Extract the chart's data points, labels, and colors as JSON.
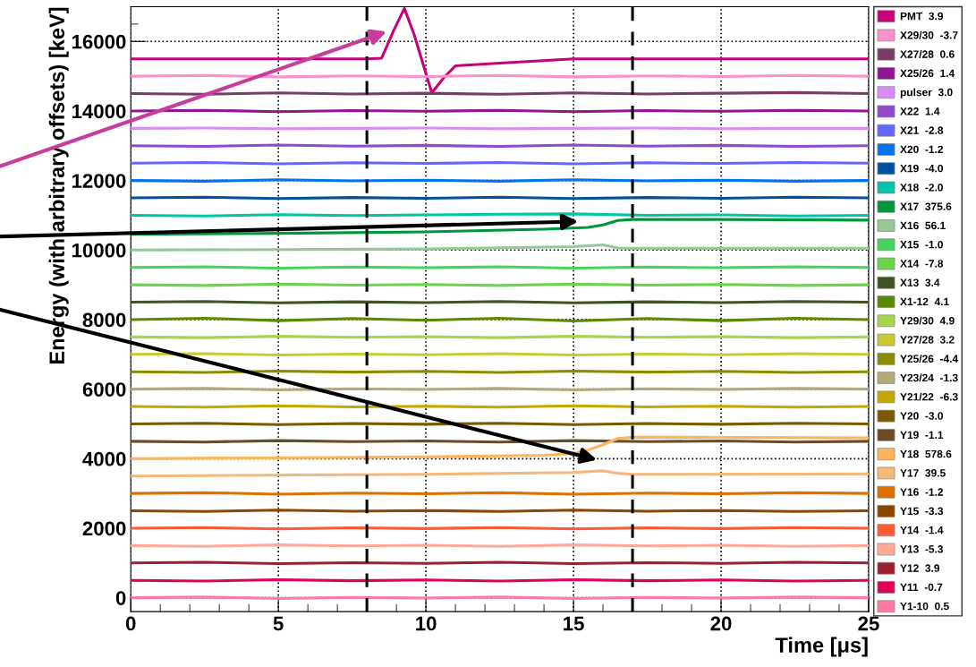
{
  "chart_data": {
    "type": "line",
    "xlabel": "Time [μs]",
    "ylabel": "Energy (with arbitrary offsets) [keV]",
    "x": [
      0,
      2.5,
      5,
      7.5,
      10,
      12.5,
      15,
      17.5,
      20,
      22.5,
      25
    ],
    "xlim": [
      0,
      25
    ],
    "xticks": [
      0,
      5,
      10,
      15,
      20,
      25
    ],
    "ylim": [
      -400,
      17000
    ],
    "yticks": [
      0,
      2000,
      4000,
      6000,
      8000,
      10000,
      12000,
      14000,
      16000
    ],
    "grid": true,
    "legend": "right",
    "line_style": "solid",
    "marker": "none",
    "ref_lines": [
      {
        "axis": "x",
        "value": 8,
        "color": "#000000",
        "line_style": "dashed"
      },
      {
        "axis": "x",
        "value": 17,
        "color": "#000000",
        "line_style": "dashed"
      }
    ],
    "series": [
      {
        "name": "PMT  3.9",
        "color": "#c8007a",
        "x": [
          0,
          8,
          8.5,
          8.9,
          9.27,
          9.6,
          10.2,
          10.6,
          11,
          12,
          15,
          25
        ],
        "values": [
          15500,
          15500,
          15520,
          16300,
          16950,
          16200,
          14520,
          14950,
          15300,
          15350,
          15500,
          15500
        ]
      },
      {
        "name": "X29/30  -3.7",
        "color": "#ff8fcc",
        "values": [
          15000,
          15020,
          14980,
          15010,
          14990,
          15020,
          14980,
          15010,
          14990,
          15020,
          15000
        ]
      },
      {
        "name": "X27/28  0.6",
        "color": "#7a3c66",
        "values": [
          14500,
          14480,
          14520,
          14490,
          14510,
          14480,
          14520,
          14490,
          14510,
          14530,
          14500
        ]
      },
      {
        "name": "X25/26  1.4",
        "color": "#8f1690",
        "values": [
          14000,
          14020,
          13980,
          14010,
          13990,
          14020,
          13980,
          14010,
          13990,
          14020,
          14000
        ]
      },
      {
        "name": "pulser  3.0",
        "color": "#d98cf5",
        "values": [
          13500,
          13510,
          13490,
          13500,
          13510,
          13490,
          13500,
          13510,
          13490,
          13500,
          13500
        ]
      },
      {
        "name": "X22  1.4",
        "color": "#9148cc",
        "values": [
          13000,
          12980,
          13020,
          12990,
          13010,
          12980,
          13020,
          12990,
          13010,
          12980,
          13000
        ]
      },
      {
        "name": "X21  -2.8",
        "color": "#6666ff",
        "values": [
          12500,
          12520,
          12480,
          12510,
          12490,
          12520,
          12480,
          12510,
          12490,
          12520,
          12500
        ]
      },
      {
        "name": "X20  -1.2",
        "color": "#0073f0",
        "values": [
          12000,
          11980,
          12020,
          11990,
          12010,
          11980,
          12020,
          11990,
          12010,
          11980,
          12000
        ]
      },
      {
        "name": "X19  -4.0",
        "color": "#0050a0",
        "values": [
          11500,
          11520,
          11480,
          11510,
          11490,
          11520,
          11480,
          11510,
          11490,
          11520,
          11500
        ]
      },
      {
        "name": "X18  -2.0",
        "color": "#00c4aa",
        "values": [
          11000,
          10980,
          11020,
          10990,
          11010,
          11030,
          11040,
          11000,
          11010,
          10980,
          11000
        ]
      },
      {
        "name": "X17  375.6",
        "color": "#00963c",
        "x": [
          0,
          5,
          10,
          14,
          15.5,
          16,
          16.5,
          17,
          20,
          25
        ],
        "values": [
          10450,
          10480,
          10520,
          10600,
          10650,
          10720,
          10850,
          10880,
          10880,
          10860
        ]
      },
      {
        "name": "X16  56.1",
        "color": "#96c896",
        "x": [
          0,
          10,
          15,
          16,
          16.5,
          17,
          25
        ],
        "values": [
          10000,
          10030,
          10100,
          10150,
          10060,
          10050,
          10050
        ]
      },
      {
        "name": "X15  -1.0",
        "color": "#44d45a",
        "values": [
          9500,
          9520,
          9480,
          9510,
          9490,
          9520,
          9480,
          9510,
          9490,
          9520,
          9500
        ]
      },
      {
        "name": "X14  -7.8",
        "color": "#6ad44a",
        "values": [
          9000,
          8980,
          9020,
          8990,
          9010,
          8980,
          9020,
          8990,
          9010,
          8980,
          9000
        ]
      },
      {
        "name": "X13  3.4",
        "color": "#3f5220",
        "values": [
          8500,
          8520,
          8480,
          8510,
          8490,
          8520,
          8480,
          8510,
          8490,
          8520,
          8500
        ]
      },
      {
        "name": "X1-12  4.1",
        "color": "#5a8a00",
        "values": [
          8000,
          8040,
          7970,
          8030,
          7980,
          8040,
          7960,
          8030,
          7970,
          8040,
          8000
        ]
      },
      {
        "name": "Y29/30  4.9",
        "color": "#a6d44a",
        "values": [
          7500,
          7480,
          7520,
          7490,
          7510,
          7480,
          7520,
          7490,
          7510,
          7480,
          7500
        ]
      },
      {
        "name": "Y27/28  3.2",
        "color": "#ccc832",
        "values": [
          7000,
          7020,
          6980,
          7010,
          6990,
          7020,
          6980,
          7010,
          6990,
          7020,
          7000
        ]
      },
      {
        "name": "Y25/26  -4.4",
        "color": "#8c8c00",
        "values": [
          6500,
          6480,
          6520,
          6490,
          6510,
          6480,
          6520,
          6490,
          6510,
          6480,
          6500
        ]
      },
      {
        "name": "Y23/24  -1.3",
        "color": "#b4aa78",
        "values": [
          6000,
          6020,
          5980,
          6010,
          5990,
          6020,
          5980,
          6010,
          5990,
          6020,
          6000
        ]
      },
      {
        "name": "Y21/22  -6.3",
        "color": "#c4aa00",
        "values": [
          5500,
          5480,
          5520,
          5490,
          5510,
          5480,
          5520,
          5490,
          5510,
          5480,
          5500
        ]
      },
      {
        "name": "Y20  -3.0",
        "color": "#7a5a00",
        "values": [
          5000,
          5020,
          4980,
          5010,
          4990,
          5020,
          4980,
          5010,
          4990,
          5020,
          5000
        ]
      },
      {
        "name": "Y19  -1.1",
        "color": "#6a4a28",
        "values": [
          4500,
          4480,
          4520,
          4490,
          4510,
          4480,
          4520,
          4490,
          4510,
          4480,
          4500
        ]
      },
      {
        "name": "Y18  578.6",
        "color": "#ffb45a",
        "x": [
          0,
          10,
          14,
          15,
          15.5,
          16,
          16.5,
          17,
          25
        ],
        "values": [
          4000,
          4050,
          4100,
          4150,
          4250,
          4400,
          4580,
          4620,
          4600
        ]
      },
      {
        "name": "Y17  39.5",
        "color": "#f4b87a",
        "x": [
          0,
          10,
          15,
          16,
          16.5,
          17,
          25
        ],
        "values": [
          3500,
          3550,
          3600,
          3650,
          3580,
          3550,
          3560
        ]
      },
      {
        "name": "Y16  -1.2",
        "color": "#dc7000",
        "values": [
          3000,
          3020,
          2980,
          3010,
          2990,
          3020,
          2980,
          3010,
          2990,
          3020,
          3000
        ]
      },
      {
        "name": "Y15  -3.3",
        "color": "#8c4600",
        "values": [
          2500,
          2480,
          2520,
          2490,
          2510,
          2480,
          2520,
          2490,
          2510,
          2480,
          2500
        ]
      },
      {
        "name": "Y14  -1.4",
        "color": "#ff5a32",
        "values": [
          2000,
          2020,
          1980,
          2010,
          1990,
          2020,
          1980,
          2010,
          1990,
          2020,
          2000
        ]
      },
      {
        "name": "Y13  -5.3",
        "color": "#ffaa96",
        "values": [
          1500,
          1480,
          1520,
          1490,
          1510,
          1480,
          1520,
          1490,
          1510,
          1480,
          1500
        ]
      },
      {
        "name": "Y12  3.9",
        "color": "#9a2030",
        "values": [
          1000,
          1020,
          980,
          1010,
          990,
          1020,
          980,
          1010,
          990,
          1020,
          1000
        ]
      },
      {
        "name": "Y11  -0.7",
        "color": "#e0005a",
        "values": [
          500,
          480,
          520,
          490,
          510,
          480,
          520,
          490,
          510,
          480,
          500
        ]
      },
      {
        "name": "Y1-10  0.5",
        "color": "#ff7aa0",
        "values": [
          0,
          20,
          -20,
          10,
          -10,
          20,
          -20,
          10,
          -10,
          20,
          0
        ]
      }
    ]
  }
}
